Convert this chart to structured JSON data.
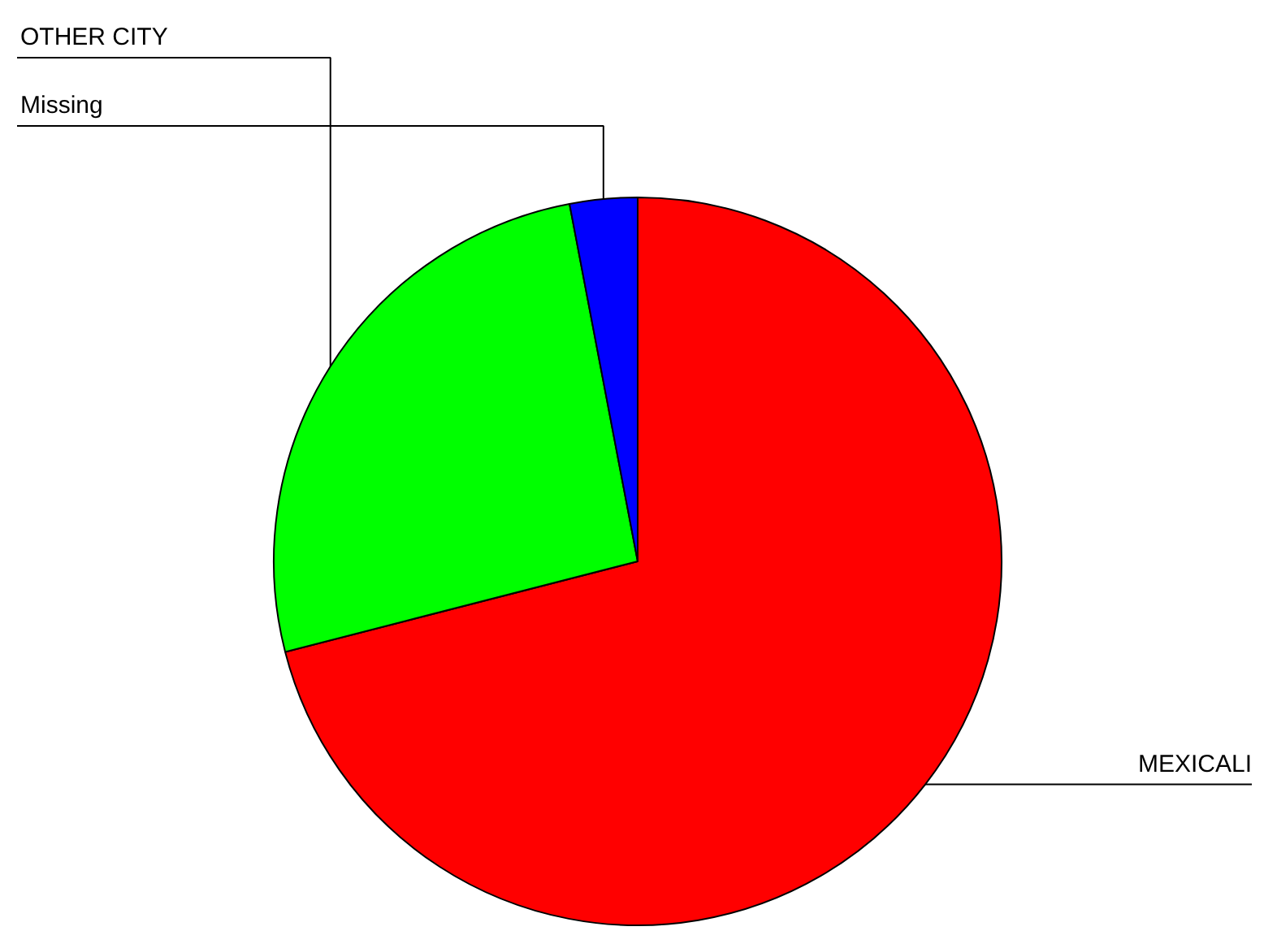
{
  "chart_data": {
    "type": "pie",
    "categories": [
      "MEXICALI",
      "OTHER CITY",
      "Missing"
    ],
    "values": [
      71,
      26,
      3
    ],
    "colors": [
      "#ff0000",
      "#00ff00",
      "#0000ff"
    ]
  }
}
